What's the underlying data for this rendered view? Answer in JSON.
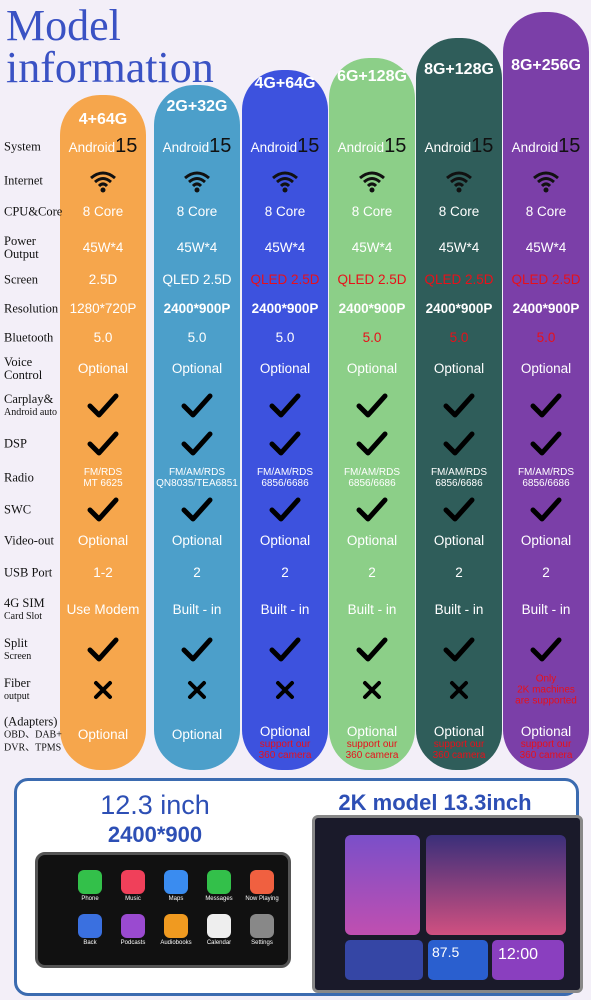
{
  "header": {
    "title_lines": [
      "Model",
      "information"
    ]
  },
  "table": {
    "columns": [
      "4+64G",
      "2G+32G",
      "4G+64G",
      "6G+128G",
      "8G+128G",
      "8G+256G"
    ],
    "rows": [
      {
        "label": [
          "System"
        ],
        "cells": [
          {
            "text": "Android",
            "version": "15"
          },
          {
            "text": "Android",
            "version": "15"
          },
          {
            "text": "Android",
            "version": "15"
          },
          {
            "text": "Android",
            "version": "15"
          },
          {
            "text": "Android",
            "version": "15"
          },
          {
            "text": "Android",
            "version": "15"
          }
        ]
      },
      {
        "label": [
          "Internet"
        ],
        "cells": [
          null,
          null,
          null,
          null,
          null,
          null
        ]
      },
      {
        "label": [
          "CPU&Core"
        ],
        "cells": [
          "8 Core",
          "8 Core",
          "8 Core",
          "8 Core",
          "8 Core",
          "8 Core"
        ]
      },
      {
        "label": [
          "Power",
          "Output"
        ],
        "cells": [
          "45W*4",
          "45W*4",
          "45W*4",
          "45W*4",
          "45W*4",
          "45W*4"
        ]
      },
      {
        "label": [
          "Screen"
        ],
        "cells": [
          "2.5D",
          "QLED 2.5D",
          "QLED 2.5D",
          "QLED 2.5D",
          "QLED 2.5D",
          "QLED 2.5D"
        ]
      },
      {
        "label": [
          "Resolution"
        ],
        "cells": [
          "1280*720P",
          "2400*900P",
          "2400*900P",
          "2400*900P",
          "2400*900P",
          "2400*900P"
        ]
      },
      {
        "label": [
          "Bluetooth"
        ],
        "cells": [
          "5.0",
          "5.0",
          "5.0",
          "5.0",
          "5.0",
          "5.0"
        ]
      },
      {
        "label": [
          "Voice",
          "Control"
        ],
        "cells": [
          "Optional",
          "Optional",
          "Optional",
          "Optional",
          "Optional",
          "Optional"
        ]
      },
      {
        "label": [
          "Carplay&",
          "Android auto"
        ],
        "cells": [
          null,
          null,
          null,
          null,
          null,
          null
        ]
      },
      {
        "label": [
          "DSP"
        ],
        "cells": [
          null,
          null,
          null,
          null,
          null,
          null
        ]
      },
      {
        "label": [
          "Radio"
        ],
        "cells": [
          [
            "FM/RDS",
            "MT 6625"
          ],
          [
            "FM/AM/RDS",
            "QN8035/TEA6851"
          ],
          [
            "FM/AM/RDS",
            "6856/6686"
          ],
          [
            "FM/AM/RDS",
            "6856/6686"
          ],
          [
            "FM/AM/RDS",
            "6856/6686"
          ],
          [
            "FM/AM/RDS",
            "6856/6686"
          ]
        ]
      },
      {
        "label": [
          "SWC"
        ],
        "cells": [
          null,
          null,
          null,
          null,
          null,
          null
        ]
      },
      {
        "label": [
          "Video-out"
        ],
        "cells": [
          "Optional",
          "Optional",
          "Optional",
          "Optional",
          "Optional",
          "Optional"
        ]
      },
      {
        "label": [
          "USB Port"
        ],
        "cells": [
          "1-2",
          "2",
          "2",
          "2",
          "2",
          "2"
        ]
      },
      {
        "label": [
          "4G SIM",
          "Card Slot"
        ],
        "cells": [
          "Use Modem",
          "Built - in",
          "Built - in",
          "Built - in",
          "Built - in",
          "Built - in"
        ]
      },
      {
        "label": [
          "Split",
          "Screen"
        ],
        "cells": [
          null,
          null,
          null,
          null,
          null,
          null
        ]
      },
      {
        "label": [
          "Fiber",
          "output"
        ],
        "cells": [
          null,
          null,
          null,
          null,
          null,
          [
            "Only",
            "2K machines",
            "are supported"
          ]
        ]
      },
      {
        "label": [
          "(Adapters)",
          "OBD、DAB+",
          "DVR、TPMS"
        ],
        "cells": [
          "Optional",
          "Optional",
          [
            "Optional",
            "support our",
            "360 camera"
          ],
          [
            "Optional",
            "support our",
            "360 camera"
          ],
          [
            "Optional",
            "support our",
            "360 camera"
          ],
          [
            "Optional",
            "support our",
            "360 camera"
          ]
        ]
      }
    ]
  },
  "bottom": {
    "left_title": "12.3 inch",
    "left_subtitle": "2400*900",
    "right_title": "2K model 13.3inch",
    "apps": [
      "Phone",
      "Music",
      "Maps",
      "Messages",
      "Now Playing",
      "Back",
      "Podcasts",
      "Audiobooks",
      "Calendar",
      "Settings"
    ],
    "clock": "12:00",
    "radio": "87.5"
  }
}
